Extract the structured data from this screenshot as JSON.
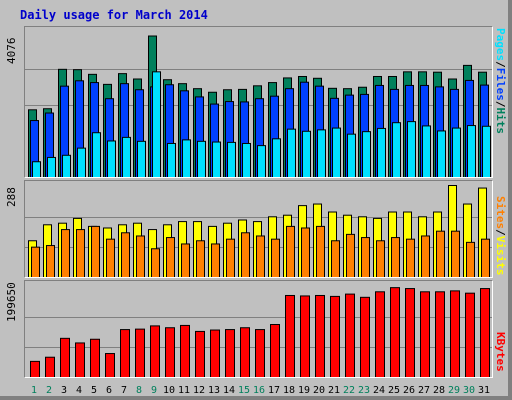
{
  "title": "Daily usage for March 2014",
  "colors": {
    "hits": "#00805c",
    "files": "#0040ff",
    "pages": "#00e0ff",
    "visits": "#ffff00",
    "sites": "#ff8000",
    "kbytes": "#ff0000",
    "weekend_label": "#00805c",
    "weekday_label": "#000000"
  },
  "labels": {
    "hits": "Hits",
    "files": "Files",
    "pages": "Pages",
    "visits": "Visits",
    "sites": "Sites",
    "kbytes": "KBytes",
    "sep": "/"
  },
  "chart_data": [
    {
      "type": "bar",
      "panel": "hits",
      "ylabel_max": "4076",
      "ylim": [
        0,
        4076
      ],
      "grid": true,
      "categories": [
        "1",
        "2",
        "3",
        "4",
        "5",
        "6",
        "7",
        "8",
        "9",
        "10",
        "11",
        "12",
        "13",
        "14",
        "15",
        "16",
        "17",
        "18",
        "19",
        "20",
        "21",
        "22",
        "23",
        "24",
        "25",
        "26",
        "27",
        "28",
        "29",
        "30",
        "31"
      ],
      "series": [
        {
          "name": "Hits",
          "values": [
            1890,
            1920,
            3020,
            3010,
            2880,
            2600,
            2900,
            2750,
            3950,
            2730,
            2620,
            2480,
            2380,
            2450,
            2460,
            2560,
            2650,
            2780,
            2820,
            2770,
            2490,
            2480,
            2520,
            2820,
            2820,
            2950,
            2950,
            2940,
            2750,
            3130,
            2940
          ]
        },
        {
          "name": "Files",
          "values": [
            1590,
            1800,
            2550,
            2700,
            2650,
            2200,
            2620,
            2450,
            2530,
            2590,
            2420,
            2250,
            2050,
            2120,
            2110,
            2200,
            2270,
            2480,
            2660,
            2550,
            2210,
            2300,
            2320,
            2570,
            2460,
            2570,
            2570,
            2530,
            2460,
            2710,
            2580
          ]
        },
        {
          "name": "Pages",
          "values": [
            440,
            560,
            620,
            820,
            1250,
            1020,
            1120,
            1010,
            2950,
            950,
            1050,
            1010,
            990,
            980,
            950,
            890,
            1080,
            1350,
            1290,
            1330,
            1380,
            1210,
            1280,
            1370,
            1530,
            1560,
            1440,
            1300,
            1380,
            1450,
            1430
          ]
        }
      ]
    },
    {
      "type": "bar",
      "panel": "visits",
      "ylabel_max": "288",
      "ylim": [
        0,
        288
      ],
      "grid": true,
      "categories": [
        "1",
        "2",
        "3",
        "4",
        "5",
        "6",
        "7",
        "8",
        "9",
        "10",
        "11",
        "12",
        "13",
        "14",
        "15",
        "16",
        "17",
        "18",
        "19",
        "20",
        "21",
        "22",
        "23",
        "24",
        "25",
        "26",
        "27",
        "28",
        "29",
        "30",
        "31"
      ],
      "series": [
        {
          "name": "Visits",
          "values": [
            115,
            165,
            170,
            185,
            160,
            155,
            165,
            170,
            150,
            165,
            175,
            175,
            160,
            170,
            180,
            175,
            190,
            195,
            225,
            230,
            205,
            195,
            190,
            185,
            205,
            205,
            190,
            205,
            288,
            230,
            280
          ]
        },
        {
          "name": "Sites",
          "values": [
            95,
            100,
            150,
            150,
            160,
            120,
            140,
            130,
            90,
            125,
            105,
            115,
            105,
            120,
            140,
            130,
            120,
            160,
            155,
            160,
            115,
            135,
            125,
            115,
            125,
            120,
            130,
            145,
            145,
            110,
            120
          ]
        }
      ]
    },
    {
      "type": "bar",
      "panel": "kbytes",
      "ylabel_max": "199650",
      "ylim": [
        0,
        199650
      ],
      "grid": true,
      "categories": [
        "1",
        "2",
        "3",
        "4",
        "5",
        "6",
        "7",
        "8",
        "9",
        "10",
        "11",
        "12",
        "13",
        "14",
        "15",
        "16",
        "17",
        "18",
        "19",
        "20",
        "21",
        "22",
        "23",
        "24",
        "25",
        "26",
        "27",
        "28",
        "29",
        "30",
        "31"
      ],
      "series": [
        {
          "name": "KBytes",
          "values": [
            35000,
            44000,
            85000,
            75000,
            83000,
            52000,
            104000,
            105000,
            112000,
            108000,
            113000,
            100000,
            103000,
            104000,
            108000,
            104000,
            115000,
            178000,
            177000,
            178000,
            176000,
            181000,
            174000,
            186000,
            195000,
            193000,
            186000,
            186000,
            188000,
            183000,
            193000
          ]
        }
      ]
    }
  ],
  "x_label_colors": [
    "w",
    "w",
    "n",
    "n",
    "n",
    "n",
    "n",
    "w",
    "w",
    "n",
    "n",
    "n",
    "n",
    "n",
    "w",
    "w",
    "n",
    "n",
    "n",
    "n",
    "n",
    "w",
    "w",
    "n",
    "n",
    "n",
    "n",
    "n",
    "w",
    "w",
    "n"
  ]
}
